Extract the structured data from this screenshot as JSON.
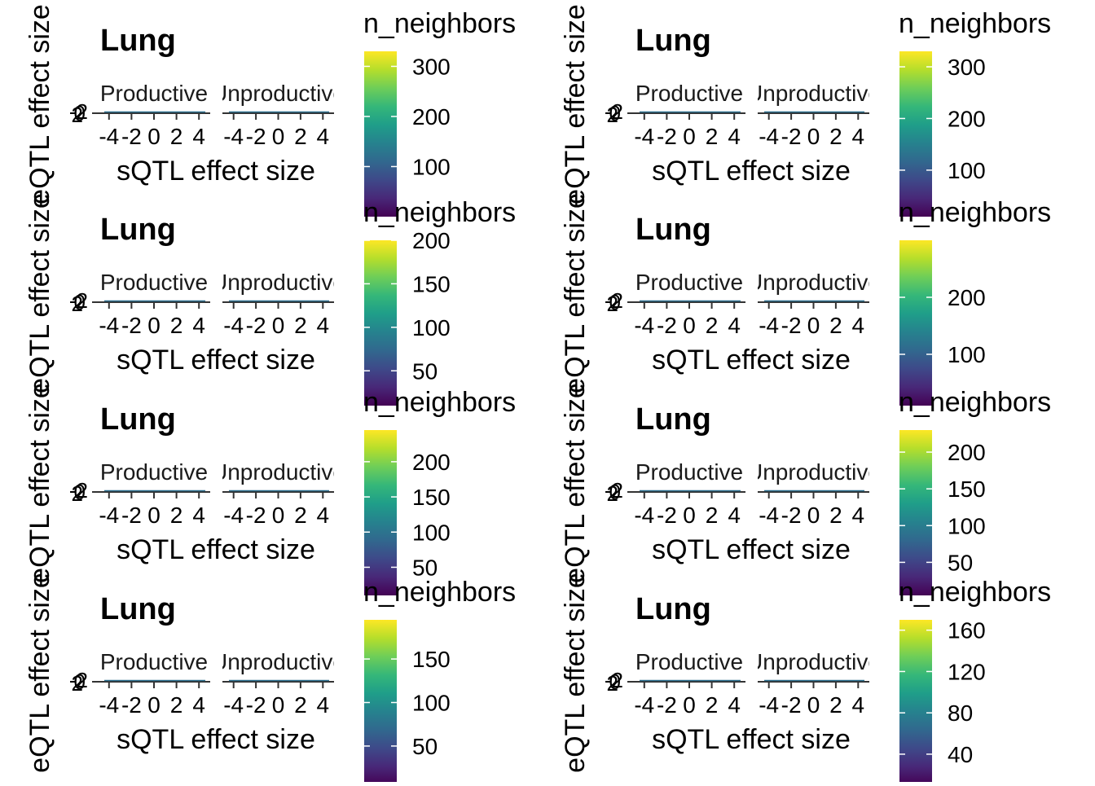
{
  "figure": {
    "description_layout": "4x2 grid of ggplot panels"
  },
  "chart_data": [
    {
      "type": "scatter",
      "title": "Lung",
      "facets": [
        "Productive",
        "Unproductive"
      ],
      "xlabel": "sQTL effect size",
      "ylabel": "eQTL effect size",
      "x_ticks": [
        -4,
        -2,
        0,
        2,
        4
      ],
      "xlim": [
        -5,
        5
      ],
      "y_tick_labels": [
        "-2",
        "0",
        "2"
      ],
      "legend_title": "n_neighbors",
      "legend_range": [
        0,
        330
      ],
      "legend_ticks": [
        100,
        200,
        300
      ]
    },
    {
      "type": "scatter",
      "title": "Lung",
      "facets": [
        "Productive",
        "Unproductive"
      ],
      "xlabel": "sQTL effect size",
      "ylabel": "eQTL effect size",
      "x_ticks": [
        -4,
        -2,
        0,
        2,
        4
      ],
      "xlim": [
        -5,
        5
      ],
      "y_tick_labels": [
        "-2",
        "0",
        "2"
      ],
      "legend_title": "n_neighbors",
      "legend_range": [
        10,
        200
      ],
      "legend_ticks": [
        50,
        100,
        150,
        200
      ]
    },
    {
      "type": "scatter",
      "title": "Lung",
      "facets": [
        "Productive",
        "Unproductive"
      ],
      "xlabel": "sQTL effect size",
      "ylabel": "eQTL effect size",
      "x_ticks": [
        -4,
        -2,
        0,
        2,
        4
      ],
      "xlim": [
        -5,
        5
      ],
      "y_tick_labels": [
        "-2",
        "0",
        "2"
      ],
      "legend_title": "n_neighbors",
      "legend_range": [
        10,
        245
      ],
      "legend_ticks": [
        50,
        100,
        150,
        200
      ]
    },
    {
      "type": "scatter",
      "title": "Lung",
      "facets": [
        "Productive",
        "Unproductive"
      ],
      "xlabel": "sQTL effect size",
      "ylabel": "eQTL effect size",
      "x_ticks": [
        -4,
        -2,
        0,
        2,
        4
      ],
      "xlim": [
        -5,
        5
      ],
      "y_tick_labels": [
        "-2",
        "0",
        "2"
      ],
      "legend_title": "n_neighbors",
      "legend_range": [
        5,
        195
      ],
      "legend_ticks": [
        50,
        100,
        150
      ]
    },
    {
      "type": "scatter",
      "title": "Lung",
      "facets": [
        "Productive",
        "Unproductive"
      ],
      "xlabel": "sQTL effect size",
      "ylabel": "eQTL effect size",
      "x_ticks": [
        -4,
        -2,
        0,
        2,
        4
      ],
      "xlim": [
        -5,
        5
      ],
      "y_tick_labels": [
        "-2",
        "0",
        "2"
      ],
      "legend_title": "n_neighbors",
      "legend_range": [
        10,
        330
      ],
      "legend_ticks": [
        100,
        200,
        300
      ]
    },
    {
      "type": "scatter",
      "title": "Lung",
      "facets": [
        "Productive",
        "Unproductive"
      ],
      "xlabel": "sQTL effect size",
      "ylabel": "eQTL effect size",
      "x_ticks": [
        -4,
        -2,
        0,
        2,
        4
      ],
      "xlim": [
        -5,
        5
      ],
      "y_tick_labels": [
        "-2",
        "0",
        "2"
      ],
      "legend_title": "n_neighbors",
      "legend_range": [
        10,
        300
      ],
      "legend_ticks": [
        100,
        200
      ]
    },
    {
      "type": "scatter",
      "title": "Lung",
      "facets": [
        "Productive",
        "Unproductive"
      ],
      "xlabel": "sQTL effect size",
      "ylabel": "eQTL effect size",
      "x_ticks": [
        -4,
        -2,
        0,
        2,
        4
      ],
      "xlim": [
        -5,
        5
      ],
      "y_tick_labels": [
        "-2",
        "0",
        "2"
      ],
      "legend_title": "n_neighbors",
      "legend_range": [
        5,
        230
      ],
      "legend_ticks": [
        50,
        100,
        150,
        200
      ]
    },
    {
      "type": "scatter",
      "title": "Lung",
      "facets": [
        "Productive",
        "Unproductive"
      ],
      "xlabel": "sQTL effect size",
      "ylabel": "eQTL effect size",
      "x_ticks": [
        -4,
        -2,
        0,
        2,
        4
      ],
      "xlim": [
        -5,
        5
      ],
      "y_tick_labels": [
        "-2",
        "0",
        "2"
      ],
      "legend_title": "n_neighbors",
      "legend_range": [
        10,
        170
      ],
      "legend_ticks": [
        40,
        80,
        120,
        160
      ]
    }
  ],
  "colors": {
    "viridis": [
      "#440154",
      "#482878",
      "#3e4989",
      "#31688e",
      "#26828e",
      "#1f9e89",
      "#35b779",
      "#6ece58",
      "#b5de2b",
      "#fde725"
    ],
    "axis": "#333333",
    "text": "#000000"
  }
}
